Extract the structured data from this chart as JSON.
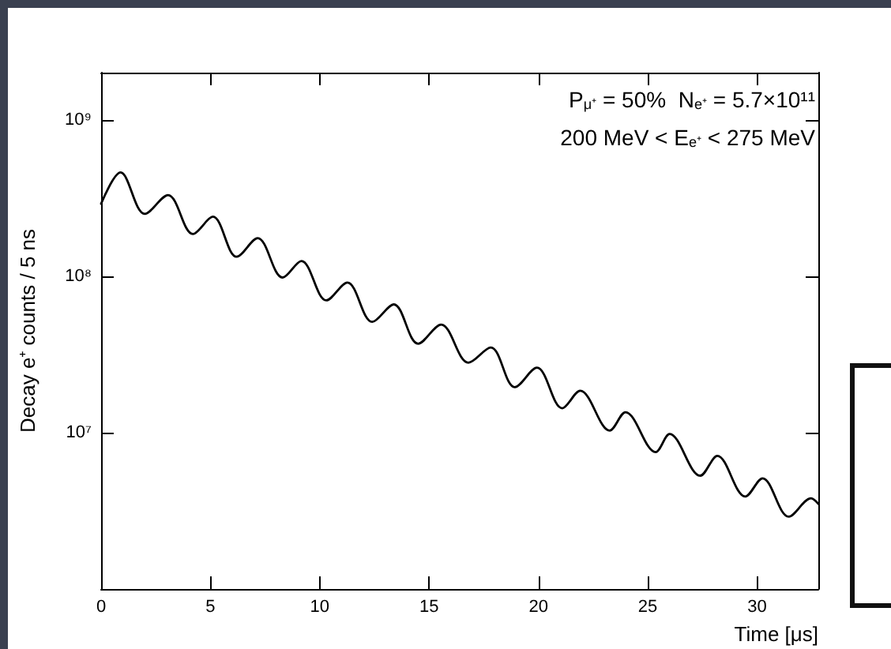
{
  "chart_data": {
    "type": "line",
    "xlabel": "Time [μs]",
    "ylabel": "Decay e⁺ counts / 5 ns",
    "log": "y",
    "grid": false,
    "marker": "none",
    "line_style": "solid",
    "annotations": [
      "P$_{μ⁺}$ = 50%  N$_{e⁺}$ = 5.7×10¹¹",
      "200 MeV < E$_{e⁺}$ < 275 MeV"
    ],
    "xlim": [
      0,
      32.8
    ],
    "xticks": [
      0,
      5,
      10,
      15,
      20,
      25,
      30
    ],
    "ylim": [
      1000000,
      2000000000
    ],
    "yticks": [
      {
        "value": 10000000,
        "label": "10⁷"
      },
      {
        "value": 100000000,
        "label": "10⁸"
      },
      {
        "value": 1000000000,
        "label": "10⁹"
      }
    ],
    "series": [
      {
        "color": "#000000",
        "x": [
          0,
          0.89,
          2.0,
          3.06,
          4.2,
          5.11,
          6.2,
          7.16,
          8.3,
          9.16,
          10.3,
          11.26,
          12.4,
          13.38,
          14.5,
          15.55,
          16.8,
          17.82,
          18.92,
          19.93,
          21.09,
          21.91,
          23.26,
          23.98,
          25.36,
          26.0,
          27.4,
          28.18,
          29.46,
          30.25,
          31.45,
          32.47,
          32.8
        ],
        "values": [
          290000000,
          460000000,
          250000000,
          330000000,
          186000000,
          240000000,
          133000000,
          175000000,
          98000000,
          125000000,
          70000000,
          91000000,
          51000000,
          66000000,
          37000000,
          49000000,
          28000000,
          35000000,
          19500000,
          26000000,
          14300000,
          18500000,
          10300000,
          13500000,
          7500000,
          9800000,
          5300000,
          7100000,
          3900000,
          5100000,
          2900000,
          3800000,
          3500000
        ]
      }
    ]
  }
}
